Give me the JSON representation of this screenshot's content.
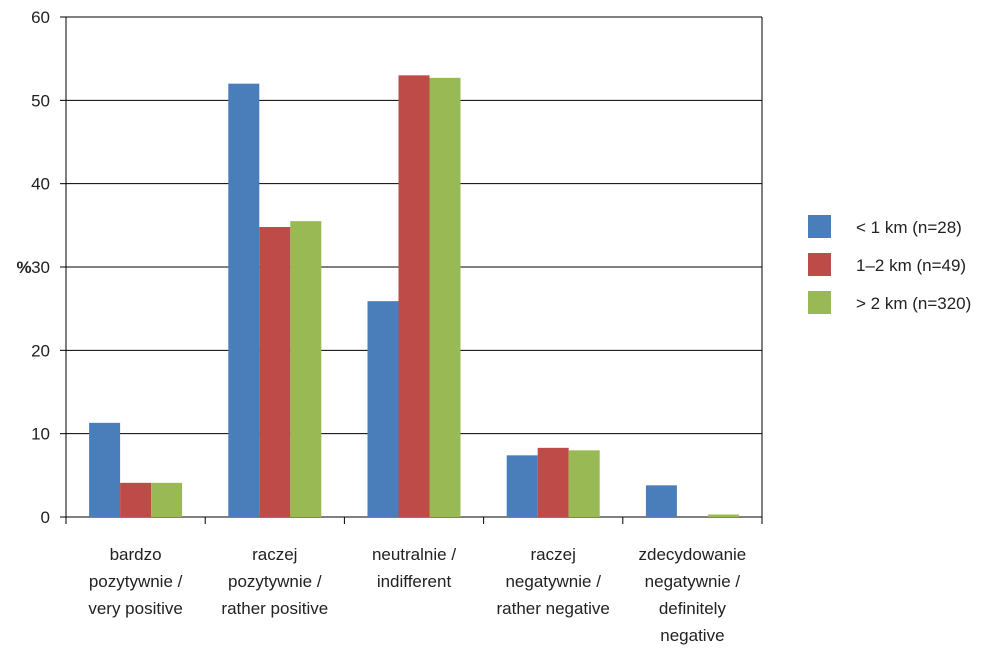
{
  "chart_data": {
    "type": "bar",
    "title": "",
    "xlabel": "",
    "ylabel": "%",
    "ylim": [
      0,
      60
    ],
    "yticks": [
      0,
      10,
      20,
      30,
      40,
      50,
      60
    ],
    "grid": true,
    "legend_position": "right",
    "categories": [
      [
        "bardzo",
        "pozytywnie /",
        "very positive"
      ],
      [
        "raczej",
        "pozytywnie /",
        "rather positive"
      ],
      [
        "neutralnie /",
        "indifferent"
      ],
      [
        "raczej",
        "negatywnie /",
        "rather negative"
      ],
      [
        "zdecydowanie",
        "negatywnie /",
        "definitely",
        "negative"
      ]
    ],
    "series": [
      {
        "name": "< 1 km (n=28)",
        "color": "#4a7ebb",
        "values": [
          11.3,
          52.0,
          25.9,
          7.4,
          3.8
        ]
      },
      {
        "name": "1–2 km (n=49)",
        "color": "#be4b48",
        "values": [
          4.1,
          34.8,
          53.0,
          8.3,
          0
        ]
      },
      {
        "name": "> 2 km (n=320)",
        "color": "#98b954",
        "values": [
          4.1,
          35.5,
          52.7,
          8.0,
          0.3
        ]
      }
    ]
  }
}
